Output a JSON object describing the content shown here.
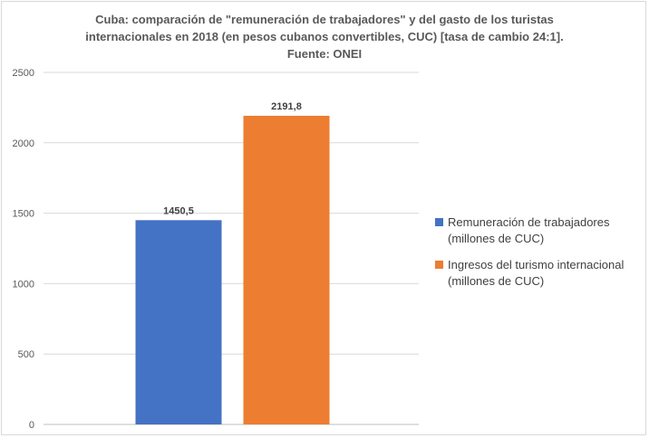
{
  "chart_data": {
    "type": "bar",
    "title_lines": [
      "Cuba: comparación de \"remuneración de trabajadores\" y del gasto de los turistas",
      "internacionales en 2018 (en pesos cubanos convertibles, CUC) [tasa de cambio 24:1].",
      "Fuente: ONEI"
    ],
    "ylim": [
      0,
      2500
    ],
    "yticks": [
      "0",
      "500",
      "1000",
      "1500",
      "2000",
      "2500"
    ],
    "grid": true,
    "legend_position": "right",
    "series": [
      {
        "name": "Remuneración de trabajadores (millones de CUC)",
        "value": 1450.5,
        "label": "1450,5",
        "color": "#4472c4"
      },
      {
        "name": "Ingresos del turismo internacional (millones de CUC)",
        "value": 2191.8,
        "label": "2191,8",
        "color": "#ed7d31"
      }
    ]
  }
}
